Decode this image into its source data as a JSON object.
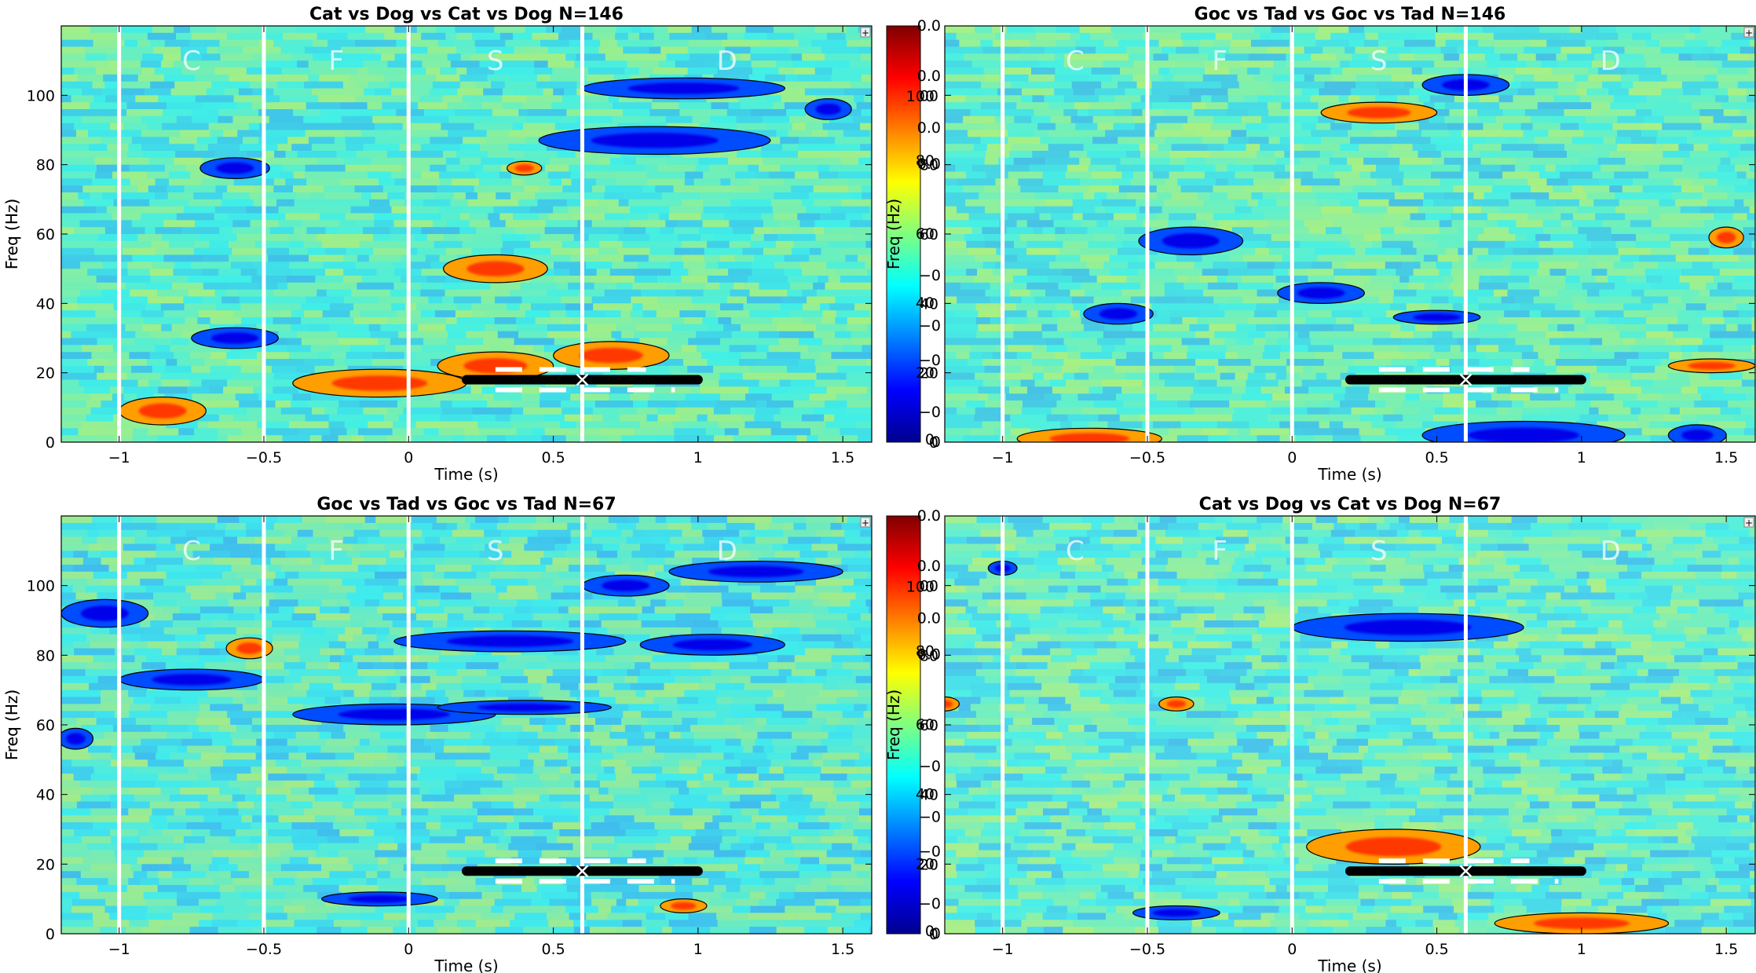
{
  "chart_data": [
    {
      "type": "heatmap",
      "title": "Cat vs Dog vs Cat vs Dog N=146",
      "xlabel": "Time (s)",
      "ylabel": "Freq (Hz)",
      "xlim": [
        -1.2,
        1.6
      ],
      "ylim": [
        0,
        120
      ],
      "xticks": [
        -1,
        -0.5,
        0,
        0.5,
        1,
        1.5
      ],
      "xtick_labels": [
        "−1",
        "−0.5",
        "0",
        "0.5",
        "1",
        "1.5"
      ],
      "yticks": [
        0,
        20,
        40,
        60,
        80,
        100
      ],
      "ytick_labels": [
        "0",
        "20",
        "40",
        "60",
        "80",
        "100"
      ],
      "phase_lines": [
        -1,
        -0.5,
        0,
        0.6
      ],
      "phase_labels": [
        {
          "t": -0.75,
          "text": "C"
        },
        {
          "t": -0.25,
          "text": "F"
        },
        {
          "t": 0.3,
          "text": "S"
        },
        {
          "t": 1.1,
          "text": "D"
        }
      ],
      "marker_bar": {
        "t_start": 0.2,
        "t_end": 1.0,
        "freq": 18,
        "cross_t": 0.6
      },
      "background": "#8fdccc",
      "clusters": [
        {
          "t": 0.95,
          "f": 102,
          "dt": 0.35,
          "df": 3,
          "sign": -1
        },
        {
          "t": 0.85,
          "f": 87,
          "dt": 0.4,
          "df": 4,
          "sign": -1
        },
        {
          "t": -0.6,
          "f": 79,
          "dt": 0.12,
          "df": 3,
          "sign": -1
        },
        {
          "t": -0.6,
          "f": 30,
          "dt": 0.15,
          "df": 3,
          "sign": -1
        },
        {
          "t": 0.3,
          "f": 50,
          "dt": 0.18,
          "df": 4,
          "sign": 1
        },
        {
          "t": -0.1,
          "f": 17,
          "dt": 0.3,
          "df": 4,
          "sign": 1
        },
        {
          "t": 0.3,
          "f": 22,
          "dt": 0.2,
          "df": 4,
          "sign": 1
        },
        {
          "t": 0.7,
          "f": 25,
          "dt": 0.2,
          "df": 4,
          "sign": 1
        },
        {
          "t": -0.85,
          "f": 9,
          "dt": 0.15,
          "df": 4,
          "sign": 1
        },
        {
          "t": 0.4,
          "f": 79,
          "dt": 0.06,
          "df": 2,
          "sign": 1
        },
        {
          "t": 1.45,
          "f": 96,
          "dt": 0.08,
          "df": 3,
          "sign": -1
        }
      ]
    },
    {
      "type": "heatmap",
      "title": "Goc vs Tad vs Goc vs Tad N=146",
      "xlabel": "Time (s)",
      "ylabel": "Freq (Hz)",
      "xlim": [
        -1.2,
        1.6
      ],
      "ylim": [
        0,
        120
      ],
      "xticks": [
        -1,
        -0.5,
        0,
        0.5,
        1,
        1.5
      ],
      "xtick_labels": [
        "−1",
        "−0.5",
        "0",
        "0.5",
        "1",
        "1.5"
      ],
      "yticks": [
        0,
        20,
        40,
        60,
        80,
        100
      ],
      "ytick_labels": [
        "0",
        "20",
        "40",
        "60",
        "80",
        "100"
      ],
      "phase_lines": [
        -1,
        -0.5,
        0,
        0.6
      ],
      "phase_labels": [
        {
          "t": -0.75,
          "text": "C"
        },
        {
          "t": -0.25,
          "text": "F"
        },
        {
          "t": 0.3,
          "text": "S"
        },
        {
          "t": 1.1,
          "text": "D"
        }
      ],
      "marker_bar": {
        "t_start": 0.2,
        "t_end": 1.0,
        "freq": 18,
        "cross_t": 0.6
      },
      "background": "#a0dfc4",
      "clusters": [
        {
          "t": -0.35,
          "f": 58,
          "dt": 0.18,
          "df": 4,
          "sign": -1
        },
        {
          "t": -0.6,
          "f": 37,
          "dt": 0.12,
          "df": 3,
          "sign": -1
        },
        {
          "t": 0.1,
          "f": 43,
          "dt": 0.15,
          "df": 3,
          "sign": -1
        },
        {
          "t": 0.3,
          "f": 95,
          "dt": 0.2,
          "df": 3,
          "sign": 1
        },
        {
          "t": 0.8,
          "f": 2,
          "dt": 0.35,
          "df": 4,
          "sign": -1
        },
        {
          "t": -0.7,
          "f": 1,
          "dt": 0.25,
          "df": 3,
          "sign": 1
        },
        {
          "t": 1.45,
          "f": 22,
          "dt": 0.15,
          "df": 2,
          "sign": 1
        },
        {
          "t": 1.5,
          "f": 59,
          "dt": 0.06,
          "df": 3,
          "sign": 1
        },
        {
          "t": 0.6,
          "f": 103,
          "dt": 0.15,
          "df": 3,
          "sign": -1
        },
        {
          "t": 0.5,
          "f": 36,
          "dt": 0.15,
          "df": 2,
          "sign": -1
        },
        {
          "t": 1.4,
          "f": 2,
          "dt": 0.1,
          "df": 3,
          "sign": -1
        }
      ]
    },
    {
      "type": "heatmap",
      "title": "Goc vs Tad vs Goc vs Tad N=67",
      "xlabel": "Time (s)",
      "ylabel": "Freq (Hz)",
      "xlim": [
        -1.2,
        1.6
      ],
      "ylim": [
        0,
        120
      ],
      "xticks": [
        -1,
        -0.5,
        0,
        0.5,
        1,
        1.5
      ],
      "xtick_labels": [
        "−1",
        "−0.5",
        "0",
        "0.5",
        "1",
        "1.5"
      ],
      "yticks": [
        0,
        20,
        40,
        60,
        80,
        100
      ],
      "ytick_labels": [
        "0",
        "20",
        "40",
        "60",
        "80",
        "100"
      ],
      "phase_lines": [
        -1,
        -0.5,
        0,
        0.6
      ],
      "phase_labels": [
        {
          "t": -0.75,
          "text": "C"
        },
        {
          "t": -0.25,
          "text": "F"
        },
        {
          "t": 0.3,
          "text": "S"
        },
        {
          "t": 1.1,
          "text": "D"
        }
      ],
      "marker_bar": {
        "t_start": 0.2,
        "t_end": 1.0,
        "freq": 18,
        "cross_t": 0.6
      },
      "background": "#8fd4d8",
      "clusters": [
        {
          "t": -1.05,
          "f": 92,
          "dt": 0.15,
          "df": 4,
          "sign": -1
        },
        {
          "t": -0.75,
          "f": 73,
          "dt": 0.25,
          "df": 3,
          "sign": -1
        },
        {
          "t": -0.05,
          "f": 63,
          "dt": 0.35,
          "df": 3,
          "sign": -1
        },
        {
          "t": 0.4,
          "f": 65,
          "dt": 0.3,
          "df": 2,
          "sign": -1
        },
        {
          "t": 0.35,
          "f": 84,
          "dt": 0.4,
          "df": 3,
          "sign": -1
        },
        {
          "t": 0.75,
          "f": 100,
          "dt": 0.15,
          "df": 3,
          "sign": -1
        },
        {
          "t": 1.2,
          "f": 104,
          "dt": 0.3,
          "df": 3,
          "sign": -1
        },
        {
          "t": 1.05,
          "f": 83,
          "dt": 0.25,
          "df": 3,
          "sign": -1
        },
        {
          "t": -0.55,
          "f": 82,
          "dt": 0.08,
          "df": 3,
          "sign": 1
        },
        {
          "t": -1.15,
          "f": 56,
          "dt": 0.06,
          "df": 3,
          "sign": -1
        },
        {
          "t": -0.1,
          "f": 10,
          "dt": 0.2,
          "df": 2,
          "sign": -1
        },
        {
          "t": 0.95,
          "f": 8,
          "dt": 0.08,
          "df": 2,
          "sign": 1
        }
      ]
    },
    {
      "type": "heatmap",
      "title": "Cat vs Dog vs Cat vs Dog N=67",
      "xlabel": "Time (s)",
      "ylabel": "Freq (Hz)",
      "xlim": [
        -1.2,
        1.6
      ],
      "ylim": [
        0,
        120
      ],
      "xticks": [
        -1,
        -0.5,
        0,
        0.5,
        1,
        1.5
      ],
      "xtick_labels": [
        "−1",
        "−0.5",
        "0",
        "0.5",
        "1",
        "1.5"
      ],
      "yticks": [
        0,
        20,
        40,
        60,
        80,
        100
      ],
      "ytick_labels": [
        "0",
        "20",
        "40",
        "60",
        "80",
        "100"
      ],
      "phase_lines": [
        -1,
        -0.5,
        0,
        0.6
      ],
      "phase_labels": [
        {
          "t": -0.75,
          "text": "C"
        },
        {
          "t": -0.25,
          "text": "F"
        },
        {
          "t": 0.3,
          "text": "S"
        },
        {
          "t": 1.1,
          "text": "D"
        }
      ],
      "marker_bar": {
        "t_start": 0.2,
        "t_end": 1.0,
        "freq": 18,
        "cross_t": 0.6
      },
      "background": "#a6ddd2",
      "clusters": [
        {
          "t": 0.4,
          "f": 88,
          "dt": 0.4,
          "df": 4,
          "sign": -1
        },
        {
          "t": 0.35,
          "f": 25,
          "dt": 0.3,
          "df": 5,
          "sign": 1
        },
        {
          "t": 1.0,
          "f": 3,
          "dt": 0.3,
          "df": 3,
          "sign": 1
        },
        {
          "t": -0.4,
          "f": 6,
          "dt": 0.15,
          "df": 2,
          "sign": -1
        },
        {
          "t": -1.0,
          "f": 105,
          "dt": 0.05,
          "df": 2,
          "sign": -1
        },
        {
          "t": -0.4,
          "f": 66,
          "dt": 0.06,
          "df": 2,
          "sign": 1
        },
        {
          "t": -1.2,
          "f": 66,
          "dt": 0.05,
          "df": 2,
          "sign": 1
        }
      ]
    }
  ],
  "colorbar": {
    "colors": [
      "#00008f",
      "#0000ff",
      "#0080ff",
      "#00ffff",
      "#80ff80",
      "#ffff00",
      "#ff8000",
      "#ff0000",
      "#800000"
    ],
    "ticks_left": [
      "0.0",
      "0.0",
      "0.0",
      "0.0",
      "−0",
      "−0",
      "−0",
      "−0",
      "0"
    ],
    "ticks_right": [
      "100",
      "80",
      "60",
      "40",
      "20",
      "0"
    ],
    "ylabel": "Freq (Hz)"
  },
  "colorbar_2": {
    "ticks_left": [
      "0.0",
      "0.0",
      "0.0",
      "0.0",
      "−0",
      "−0",
      "−0",
      "−0",
      "0"
    ],
    "ticks_right": [
      "100",
      "80",
      "60",
      "40",
      "20",
      "0"
    ],
    "ylabel": "Freq (Hz)"
  },
  "corner_button": "+"
}
